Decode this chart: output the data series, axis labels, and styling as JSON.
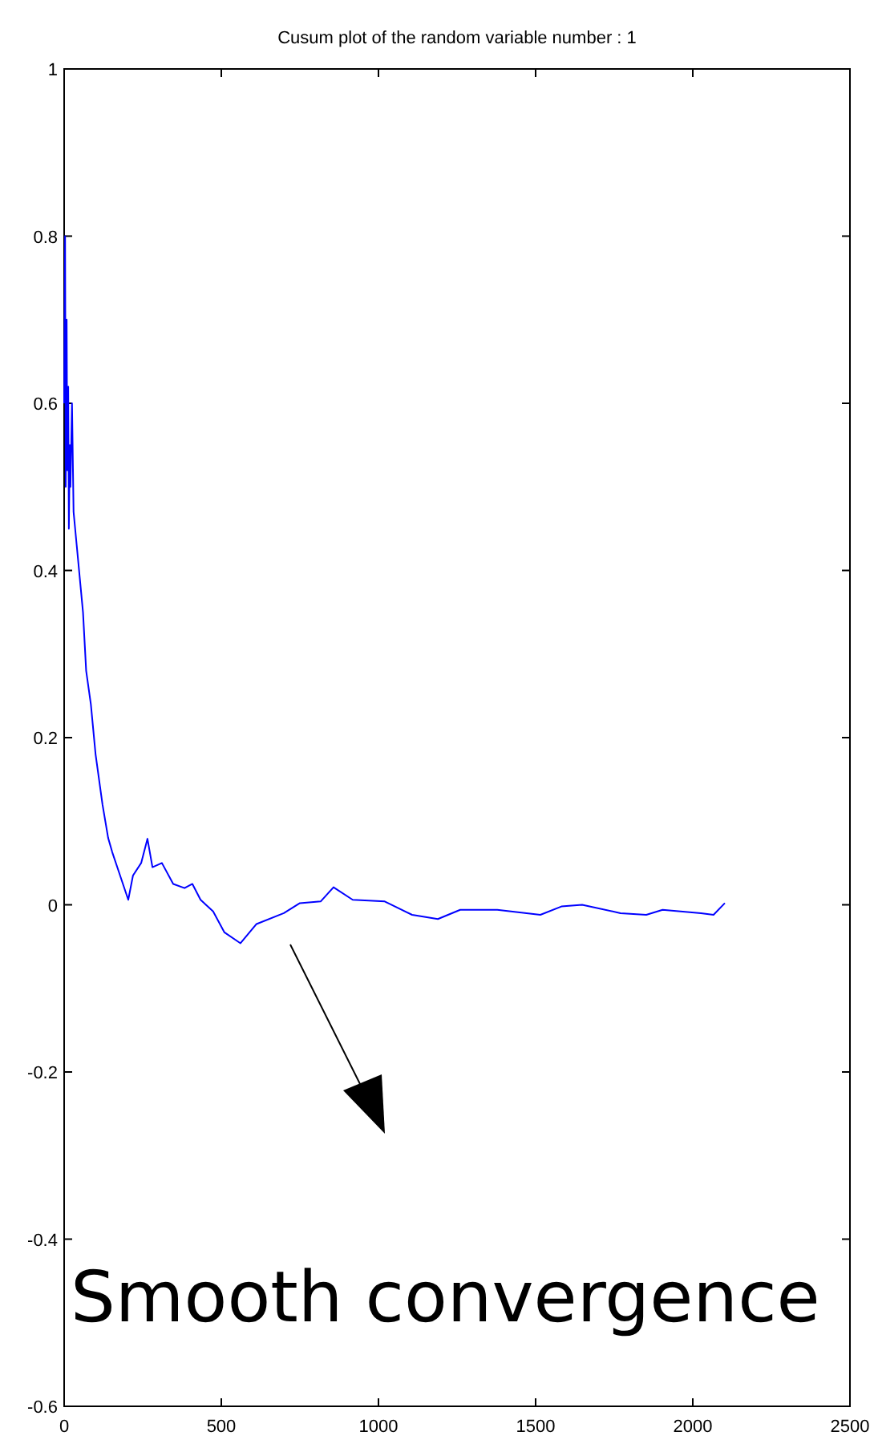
{
  "chart_data": {
    "type": "line",
    "title": "Cusum plot of the random variable number : 1",
    "x": [
      0,
      3,
      5,
      8,
      10,
      13,
      15,
      18,
      20,
      25,
      30,
      40,
      60,
      70,
      85,
      100,
      122,
      140,
      153,
      178,
      204,
      219,
      245,
      265,
      281,
      311,
      347,
      383,
      408,
      434,
      474,
      510,
      561,
      612,
      699,
      750,
      816,
      857,
      918,
      1020,
      1107,
      1189,
      1260,
      1378,
      1515,
      1582,
      1648,
      1770,
      1852,
      1904,
      2026,
      2066,
      2102
    ],
    "series": [
      {
        "color": "#0000ff",
        "values": [
          0.6,
          0.8,
          0.5,
          0.7,
          0.52,
          0.62,
          0.45,
          0.55,
          0.5,
          0.6,
          0.47,
          0.43,
          0.35,
          0.28,
          0.24,
          0.18,
          0.12,
          0.08,
          0.063,
          0.035,
          0.006,
          0.035,
          0.05,
          0.079,
          0.045,
          0.05,
          0.025,
          0.02,
          0.025,
          0.006,
          -0.008,
          -0.033,
          -0.046,
          -0.023,
          -0.01,
          0.002,
          0.004,
          0.021,
          0.006,
          0.004,
          -0.012,
          -0.017,
          -0.006,
          -0.006,
          -0.012,
          -0.002,
          0.0,
          -0.01,
          -0.012,
          -0.006,
          -0.01,
          -0.012,
          0.002
        ]
      }
    ],
    "xlim": [
      0,
      2500
    ],
    "xticks": [
      0,
      500,
      1000,
      1500,
      2000,
      2500
    ],
    "ylim": [
      -0.6,
      1
    ],
    "yticks": [
      -0.6,
      -0.4,
      -0.2,
      0,
      0.2,
      0.4,
      0.6,
      0.8,
      1
    ],
    "annotations": [
      "Smooth convergence"
    ]
  }
}
